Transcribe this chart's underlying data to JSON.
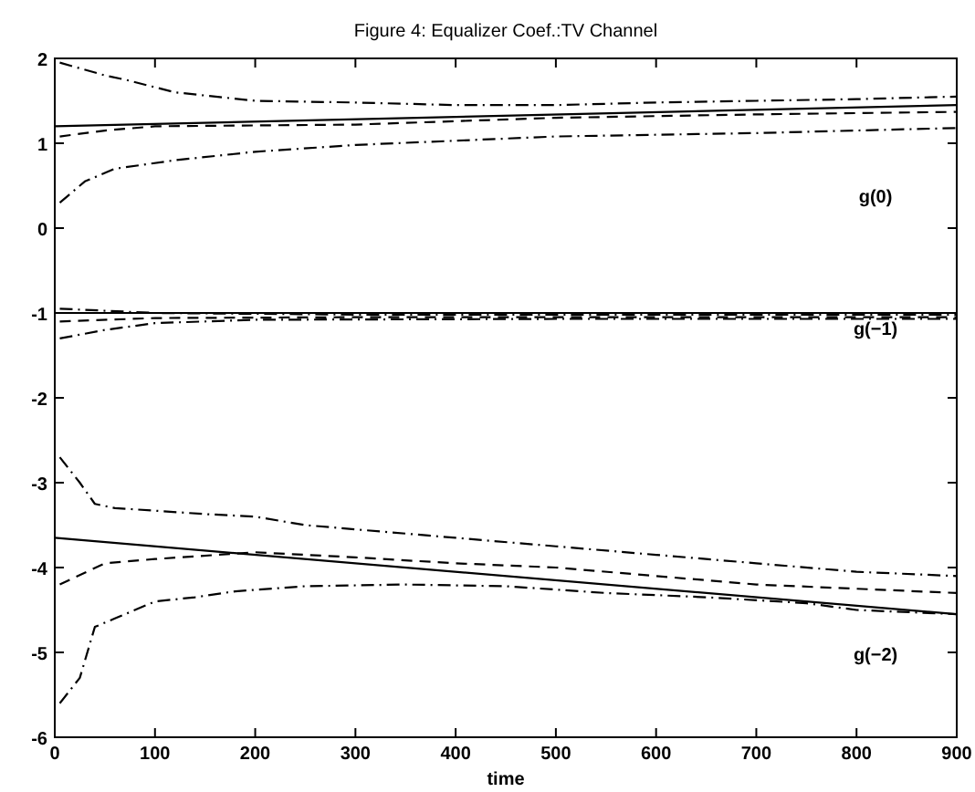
{
  "chart_data": {
    "type": "line",
    "title": "Figure 4: Equalizer Coef.:TV Channel",
    "xlabel": "time",
    "xlim": [
      0,
      900
    ],
    "ylim": [
      -6,
      2
    ],
    "xticks": [
      0,
      100,
      200,
      300,
      400,
      500,
      600,
      700,
      800,
      900
    ],
    "yticks": [
      -6,
      -5,
      -4,
      -3,
      -2,
      -1,
      0,
      1,
      2
    ],
    "grid": false,
    "series": [
      {
        "color": "#000000",
        "line_style": "solid",
        "x": [
          0,
          900
        ],
        "values": [
          1.2,
          1.45
        ]
      },
      {
        "color": "#000000",
        "line_style": "dashed",
        "x": [
          5,
          50,
          100,
          300,
          500,
          700,
          900
        ],
        "values": [
          1.08,
          1.15,
          1.2,
          1.22,
          1.3,
          1.34,
          1.37
        ]
      },
      {
        "color": "#000000",
        "line_style": "dashdot",
        "x": [
          5,
          50,
          70,
          120,
          200,
          300,
          400,
          500,
          600,
          700,
          800,
          900
        ],
        "values": [
          1.95,
          1.8,
          1.75,
          1.6,
          1.5,
          1.48,
          1.45,
          1.45,
          1.48,
          1.5,
          1.52,
          1.55
        ]
      },
      {
        "color": "#000000",
        "line_style": "dashdot",
        "x": [
          5,
          30,
          60,
          120,
          200,
          300,
          400,
          500,
          600,
          700,
          800,
          900
        ],
        "values": [
          0.3,
          0.55,
          0.7,
          0.8,
          0.9,
          0.98,
          1.03,
          1.08,
          1.1,
          1.12,
          1.15,
          1.18
        ]
      },
      {
        "color": "#000000",
        "line_style": "solid",
        "x": [
          0,
          900
        ],
        "values": [
          -1,
          -1
        ]
      },
      {
        "color": "#000000",
        "line_style": "dashed",
        "x": [
          5,
          100,
          300,
          900
        ],
        "values": [
          -1.1,
          -1.06,
          -1.05,
          -1.05
        ]
      },
      {
        "color": "#000000",
        "line_style": "dashdot",
        "x": [
          5,
          100,
          300,
          900
        ],
        "values": [
          -0.95,
          -1,
          -1.02,
          -1.02
        ]
      },
      {
        "color": "#000000",
        "line_style": "dashdot",
        "x": [
          5,
          50,
          100,
          200,
          500,
          900
        ],
        "values": [
          -1.3,
          -1.2,
          -1.12,
          -1.08,
          -1.07,
          -1.07
        ]
      },
      {
        "color": "#000000",
        "line_style": "solid",
        "x": [
          0,
          900
        ],
        "values": [
          -3.65,
          -4.55
        ]
      },
      {
        "color": "#000000",
        "line_style": "dashed",
        "x": [
          5,
          50,
          100,
          200,
          300,
          400,
          500,
          600,
          700,
          800,
          900
        ],
        "values": [
          -4.2,
          -3.95,
          -3.9,
          -3.82,
          -3.88,
          -3.95,
          -4,
          -4.1,
          -4.2,
          -4.25,
          -4.3
        ]
      },
      {
        "color": "#000000",
        "line_style": "dashdot",
        "x": [
          5,
          25,
          40,
          60,
          100,
          150,
          200,
          250,
          300,
          400,
          500,
          600,
          700,
          800,
          900
        ],
        "values": [
          -2.7,
          -3,
          -3.25,
          -3.3,
          -3.33,
          -3.37,
          -3.4,
          -3.5,
          -3.55,
          -3.65,
          -3.75,
          -3.85,
          -3.95,
          -4.05,
          -4.1
        ]
      },
      {
        "color": "#000000",
        "line_style": "dashdot",
        "x": [
          5,
          25,
          40,
          60,
          100,
          140,
          180,
          250,
          350,
          450,
          550,
          650,
          750,
          800,
          900
        ],
        "values": [
          -5.6,
          -5.3,
          -4.7,
          -4.6,
          -4.4,
          -4.35,
          -4.28,
          -4.22,
          -4.2,
          -4.22,
          -4.3,
          -4.35,
          -4.42,
          -4.5,
          -4.55
        ]
      }
    ],
    "annotations": [
      "g(0)",
      "g(−1)",
      "g(−2)"
    ]
  }
}
